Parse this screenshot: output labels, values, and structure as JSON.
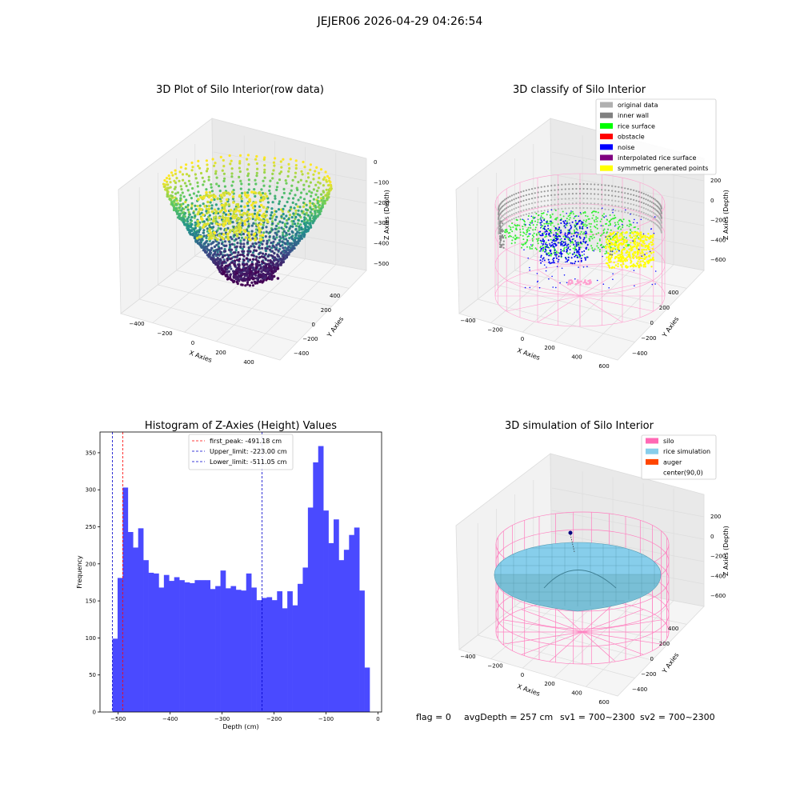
{
  "figure_title": "JEJER06 2026-04-29 04:26:54",
  "footer": {
    "flag": "flag = 0",
    "avg_depth": "avgDepth = 257 cm",
    "sv1": "sv1 = 700~2300",
    "sv2": "sv2 = 700~2300"
  },
  "colors": {
    "histogram": "#4a4aff",
    "peak_line": "#ff0000",
    "limit_lines": "#0000cc",
    "silo": "#ff69b4",
    "rice_simulation": "#87ceeb",
    "auger": "#ff4500",
    "original_data": "#b0b0b0",
    "inner_wall": "#808080",
    "rice_surface": "#00ff00",
    "obstacle": "#ff0000",
    "noise": "#0000ff",
    "interpolated_rice_surface": "#800080",
    "symmetric_generated_points": "#ffff00"
  },
  "chart_data": [
    {
      "type": "scatter3d",
      "title": "3D Plot of Silo Interior(row data)",
      "xlabel": "X Axies",
      "ylabel": "Y Axies",
      "zlabel": "Z Axies (Depth)",
      "x_ticks": [
        "−400",
        "−200",
        "0",
        "200",
        "400"
      ],
      "y_ticks": [
        "400",
        "200",
        "0",
        "−200",
        "−400"
      ],
      "z_ticks": [
        "0",
        "−100",
        "−200",
        "−300",
        "−400",
        "−500"
      ],
      "xlim": [
        -500,
        500
      ],
      "ylim": [
        -500,
        500
      ],
      "zlim": [
        -560,
        0
      ]
    },
    {
      "type": "scatter3d",
      "title": "3D classify of Silo Interior",
      "xlabel": "X Axies",
      "ylabel": "Y Axies",
      "zlabel": "Z Axies (Depth)",
      "x_ticks": [
        "−400",
        "−200",
        "0",
        "200",
        "400",
        "600"
      ],
      "y_ticks": [
        "400",
        "200",
        "0",
        "−200",
        "−400"
      ],
      "z_ticks": [
        "200",
        "0",
        "−200",
        "−400",
        "−600"
      ],
      "legend_position": "upper-right",
      "legend": [
        {
          "label": "original data",
          "color": "#b0b0b0"
        },
        {
          "label": "inner wall",
          "color": "#808080"
        },
        {
          "label": "rice surface",
          "color": "#00ff00"
        },
        {
          "label": "obstacle",
          "color": "#ff0000"
        },
        {
          "label": "noise",
          "color": "#0000ff"
        },
        {
          "label": "interpolated rice surface",
          "color": "#800080"
        },
        {
          "label": "symmetric generated points",
          "color": "#ffff00"
        }
      ]
    },
    {
      "type": "bar",
      "title": "Histogram of Z-Axies (Height) Values",
      "xlabel": "Depth (cm)",
      "ylabel": "Frequency",
      "xlim": [
        -535,
        7
      ],
      "ylim": [
        0,
        378
      ],
      "x_ticks": [
        -500,
        -400,
        -300,
        -200,
        -100,
        0
      ],
      "y_ticks": [
        0,
        50,
        100,
        150,
        200,
        250,
        300,
        350
      ],
      "x_tick_labels": [
        "−500",
        "−400",
        "−300",
        "−200",
        "−100",
        "0"
      ],
      "bin_start": -511.05,
      "bin_width": 9.9,
      "values": [
        99,
        181,
        303,
        243,
        222,
        248,
        205,
        188,
        187,
        168,
        185,
        177,
        182,
        178,
        175,
        174,
        178,
        178,
        178,
        166,
        170,
        191,
        167,
        170,
        165,
        164,
        187,
        168,
        151,
        154,
        155,
        151,
        163,
        140,
        163,
        144,
        173,
        195,
        276,
        337,
        359,
        272,
        228,
        260,
        205,
        219,
        239,
        249,
        164,
        60
      ],
      "lines": [
        {
          "label": "first_peak: -491.18 cm",
          "x": -491.18,
          "color": "#ff0000"
        },
        {
          "label": "Upper_limit: -223.00 cm",
          "x": -223.0,
          "color": "#0000cc"
        },
        {
          "label": "Lower_limit: -511.05 cm",
          "x": -511.05,
          "color": "#0000cc"
        }
      ],
      "legend_position": "top-center"
    },
    {
      "type": "surface3d",
      "title": "3D simulation of Silo Interior",
      "xlabel": "X Axies",
      "ylabel": "Y Axies",
      "zlabel": "Z Axies (Depth)",
      "x_ticks": [
        "−400",
        "−200",
        "0",
        "200",
        "400",
        "600"
      ],
      "y_ticks": [
        "400",
        "200",
        "0",
        "−200",
        "−400"
      ],
      "z_ticks": [
        "200",
        "0",
        "−200",
        "−400",
        "−600"
      ],
      "legend_position": "upper-right",
      "legend": [
        {
          "label": "silo",
          "color": "#ff69b4"
        },
        {
          "label": "rice simulation",
          "color": "#87ceeb"
        },
        {
          "label": "auger",
          "color": "#ff4500"
        },
        {
          "label": "center(90,0)",
          "color": "none"
        }
      ]
    }
  ]
}
